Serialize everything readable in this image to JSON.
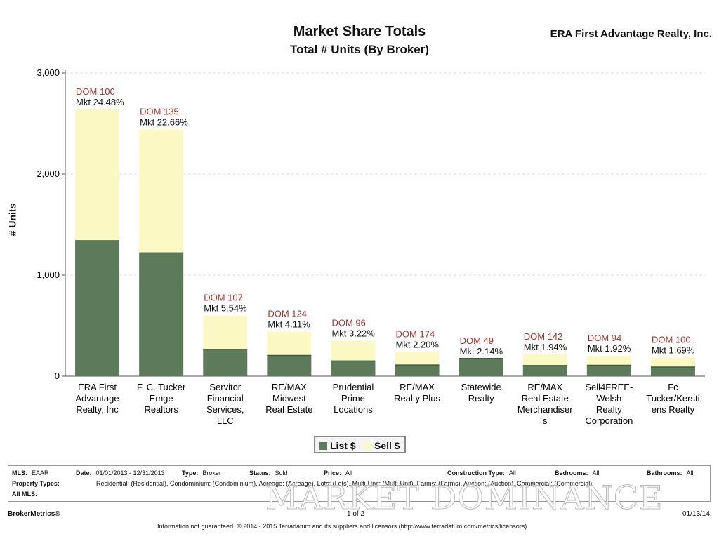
{
  "header": {
    "title": "Market Share Totals",
    "subtitle": "Total # Units (By Broker)",
    "company": "ERA First Advantage Realty, Inc."
  },
  "colors": {
    "list": "#5d7a5a",
    "sell": "#fbf8c4",
    "dom": "#a5342e",
    "grid": "#dddddd"
  },
  "chart_data": {
    "type": "bar",
    "stacked": true,
    "ylabel": "# Units",
    "ylim": [
      0,
      3000
    ],
    "yticks": [
      "0",
      "1,000",
      "2,000",
      "3,000"
    ],
    "grid": true,
    "legend_position": "bottom-center",
    "categories": [
      [
        "ERA First",
        "Advantage",
        "Realty, Inc"
      ],
      [
        "F. C. Tucker",
        "Emge",
        "Realtors"
      ],
      [
        "Servitor",
        "Financial",
        "Services,",
        "LLC"
      ],
      [
        "RE/MAX",
        "Midwest",
        "Real Estate"
      ],
      [
        "Prudential",
        "Prime",
        "Locations"
      ],
      [
        "RE/MAX",
        "Realty Plus"
      ],
      [
        "Statewide",
        "Realty"
      ],
      [
        "RE/MAX",
        "Real Estate",
        "Merchandiser",
        "s"
      ],
      [
        "Sell4FREE-",
        "Welsh",
        "Realty",
        "Corporation"
      ],
      [
        "Fc",
        "Tucker/Kersti",
        "ens Realty"
      ]
    ],
    "series": [
      {
        "name": "List $",
        "values": [
          1340,
          1220,
          265,
          205,
          150,
          110,
          175,
          105,
          108,
          90
        ]
      },
      {
        "name": "Sell $",
        "values": [
          1300,
          1220,
          335,
          235,
          200,
          128,
          0,
          110,
          95,
          95
        ]
      }
    ],
    "dom_labels": [
      "DOM 100",
      "DOM 135",
      "DOM 107",
      "DOM 124",
      "DOM 96",
      "DOM 174",
      "DOM 49",
      "DOM 142",
      "DOM 94",
      "DOM 100"
    ],
    "mkt_labels": [
      "Mkt 24.48%",
      "Mkt 22.66%",
      "Mkt 5.54%",
      "Mkt 4.11%",
      "Mkt 3.22%",
      "Mkt 2.20%",
      "Mkt 2.14%",
      "Mkt 1.94%",
      "Mkt 1.92%",
      "Mkt 1.69%"
    ]
  },
  "filters": {
    "mls_label": "MLS:",
    "mls": "EAAR",
    "date_label": "Date:",
    "date": "01/01/2013 - 12/31/2013",
    "type_label": "Type:",
    "type": "Broker",
    "status_label": "Status:",
    "status": "Sold",
    "price_label": "Price:",
    "price": "All",
    "construction_label": "Construction Type:",
    "construction": "All",
    "bedrooms_label": "Bedrooms:",
    "bedrooms": "All",
    "bathrooms_label": "Bathrooms:",
    "bathrooms": "All",
    "property_label": "Property Types:",
    "property": "Residential: (Residential), Condominium: (Condominium), Acreage: (Acreage), Lots: (Lots), Multi-Unit: (Multi-Unit), Farms: (Farms), Auction: (Auction), Commercial: (Commercial)",
    "allmls_label": "All MLS:"
  },
  "watermark": "MARKET DOMINANCE",
  "footer": {
    "brand": "BrokerMetrics®",
    "page": "1 of 2",
    "date": "01/13/14",
    "disclaimer": "Information not guaranteed.  © 2014 - 2015 Terradatum and its suppliers and licensors (http://www.terradatum.com/metrics/licensors)."
  }
}
